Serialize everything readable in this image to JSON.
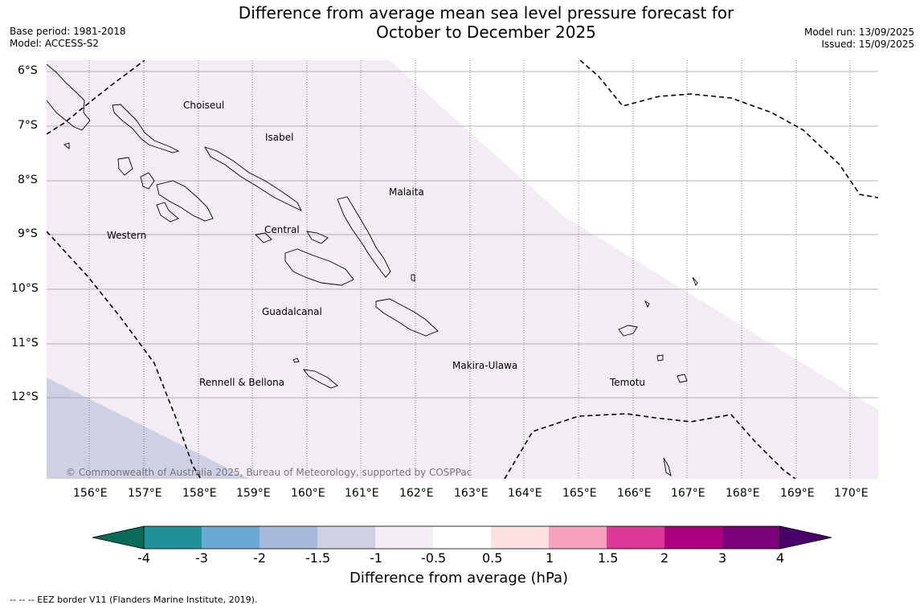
{
  "header": {
    "title_line1": "Difference from average mean sea level pressure forecast for",
    "title_line2": "October to December 2025",
    "base_period": "Base period: 1981-2018",
    "model": "Model: ACCESS-S2",
    "model_run": "Model run: 13/09/2025",
    "issued": "Issued: 15/09/2025"
  },
  "map": {
    "lat_labels": [
      "6°S",
      "7°S",
      "8°S",
      "9°S",
      "10°S",
      "11°S",
      "12°S"
    ],
    "lon_labels": [
      "156°E",
      "157°E",
      "158°E",
      "159°E",
      "160°E",
      "161°E",
      "162°E",
      "163°E",
      "164°E",
      "165°E",
      "166°E",
      "167°E",
      "168°E",
      "169°E",
      "170°E"
    ],
    "places": [
      "Choiseul",
      "Isabel",
      "Malaita",
      "Western",
      "Central",
      "Guadalcanal",
      "Makira-Ulawa",
      "Rennell & Bellona",
      "Temotu"
    ],
    "copyright": "© Commonwealth of Australia 2025, Bureau of Meteorology, supported by COSPPac",
    "colors": {
      "band_minus1_to_minus0_5": "#f3ecf5",
      "band_minus1_5_to_minus1": "#cfd0e3",
      "coast": "#000000",
      "grid": "#888888"
    }
  },
  "colorbar": {
    "title": "Difference from average (hPa)",
    "tick_labels": [
      "-4",
      "-3",
      "-2",
      "-1.5",
      "-1",
      "-0.5",
      "0.5",
      "1",
      "1.5",
      "2",
      "3",
      "4"
    ],
    "colors": {
      "below_min": "#0a6b5a",
      "c1": "#1e9199",
      "c2": "#6aa9d3",
      "c3": "#a6b9da",
      "c4": "#cfd0e3",
      "c5": "#f3ecf5",
      "c6": "#ffffff",
      "c7": "#fde0e0",
      "c8": "#f7a2bd",
      "c9": "#dd3799",
      "c10": "#ae0180",
      "c11": "#7a0177",
      "above_max": "#49006a"
    }
  },
  "footer": {
    "legend_text": "--  --  -- EEZ border V11 (Flanders Marine Institute, 2019)."
  }
}
